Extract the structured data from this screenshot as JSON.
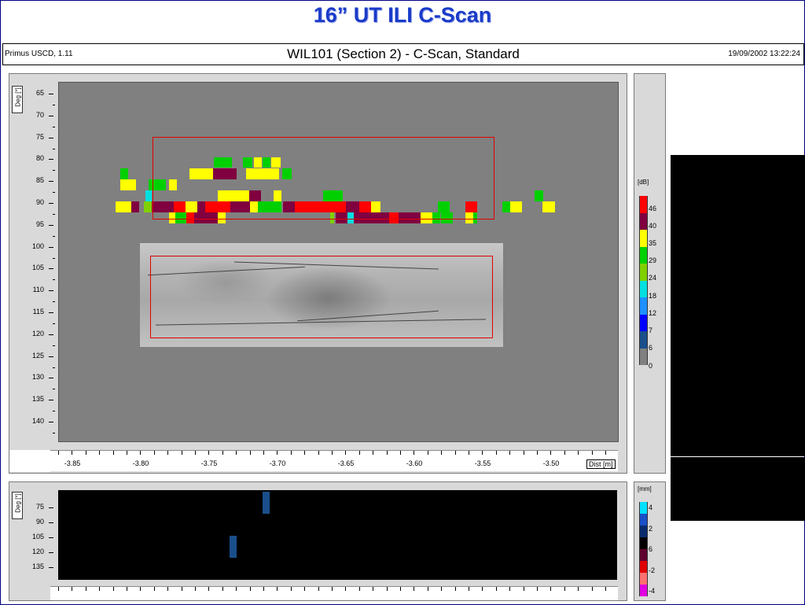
{
  "slide": {
    "title": "16” UT ILI C-Scan"
  },
  "app": {
    "name": "Primus USCD, 1.11",
    "scan_title": "WIL101 (Section 2) - C-Scan, Standard",
    "datetime": "19/09/2002  13:22:24"
  },
  "cscan": {
    "y_axis_label": "Deg [°]",
    "y_ticks": [
      "65",
      "70",
      "75",
      "80",
      "85",
      "90",
      "95",
      "100",
      "105",
      "110",
      "115",
      "120",
      "125",
      "130",
      "135",
      "140"
    ],
    "x_ticks": [
      "-3.85",
      "-3.80",
      "-3.75",
      "-3.70",
      "-3.65",
      "-3.60",
      "-3.55",
      "-3.50"
    ],
    "x_axis_label": "Dist [m]"
  },
  "db_legend": {
    "unit": "[dB]",
    "labels": [
      "46",
      "40",
      "35",
      "29",
      "24",
      "18",
      "12",
      "7",
      "6",
      "0"
    ],
    "colors": [
      "#ff0000",
      "#800040",
      "#ffff00",
      "#00d000",
      "#7fd000",
      "#00e0e0",
      "#1e90ff",
      "#0000ff",
      "#1a4f8c",
      "#808080"
    ]
  },
  "lower": {
    "y_axis_label": "Deg [°]",
    "y_ticks": [
      "75",
      "90",
      "105",
      "120",
      "135"
    ]
  },
  "mm_legend": {
    "unit": "[mm]",
    "labels": [
      "4",
      "2",
      "6",
      "-2",
      "-4"
    ],
    "colors": [
      "#00e0ff",
      "#1a50c8",
      "#0a2c6e",
      "#000000",
      "#600030",
      "#e00000",
      "#ff7070",
      "#e000e0"
    ]
  }
}
